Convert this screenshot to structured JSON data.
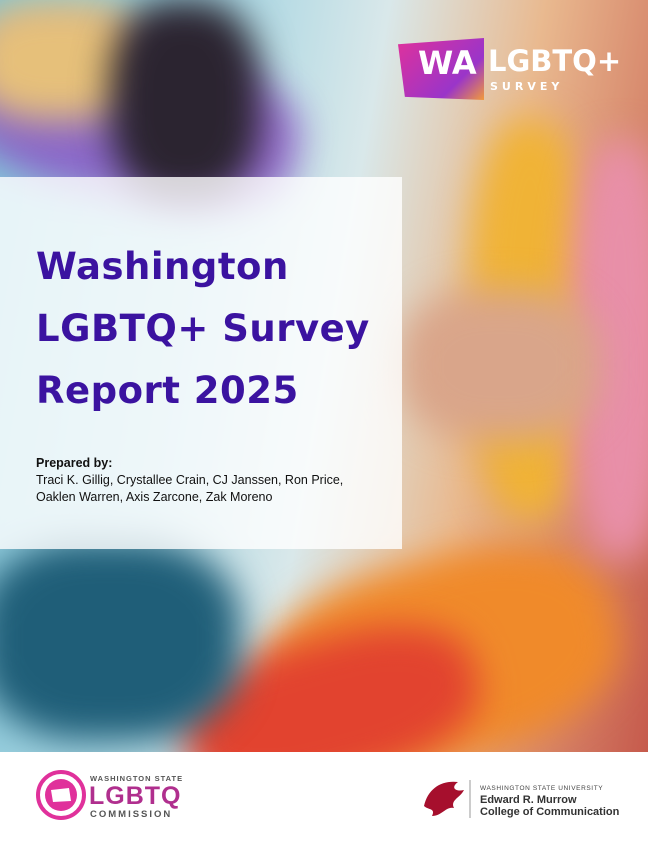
{
  "logo": {
    "mark": "WA",
    "name": "LGBTQ+",
    "sub": "SURVEY"
  },
  "title_lines": [
    "Washington",
    "LGBTQ+ Survey",
    "Report 2025"
  ],
  "prepared_label": "Prepared by:",
  "author_lines": [
    "Traci K. Gillig, Crystallee Crain, CJ Janssen, Ron Price,",
    "Oaklen Warren, Axis Zarcone, Zak Moreno"
  ],
  "footer": {
    "commission": {
      "top": "WASHINGTON STATE",
      "main": "LGBTQ",
      "bottom": "COMMISSION"
    },
    "university": {
      "top": "WASHINGTON STATE UNIVERSITY",
      "line1": "Edward R. Murrow",
      "line2": "College of Communication"
    }
  }
}
